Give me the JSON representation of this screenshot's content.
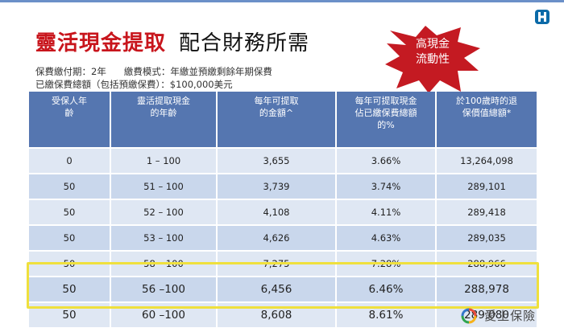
{
  "title": {
    "main": "靈活現金提取",
    "sub": "配合財務所需"
  },
  "burst": {
    "line1": "高現金",
    "line2": "流動性",
    "color": "#c41a22"
  },
  "info": {
    "term": "保費繳付期：2年",
    "mode": "繳費模式：年繳並預繳剩餘年期保費",
    "total": "已繳保費總額（包括預繳保費）：$100,000美元"
  },
  "table": {
    "headers": [
      "受保人年齡",
      "靈活提取現金的年齡",
      "每年可提取的金額^",
      "每年可提取現金佔已繳保費總額的%",
      "於100歲時的退保價值總額*"
    ],
    "rows": [
      [
        "0",
        "1 – 100",
        "3,655",
        "3.66%",
        "13,264,098"
      ],
      [
        "50",
        "51 – 100",
        "3,739",
        "3.74%",
        "289,101"
      ],
      [
        "50",
        "52 – 100",
        "4,108",
        "4.11%",
        "289,418"
      ],
      [
        "50",
        "53 – 100",
        "4,626",
        "4.63%",
        "289,035"
      ],
      [
        "50",
        "58 – 100",
        "7,275",
        "7.28%",
        "288,966"
      ],
      [
        "50",
        "56 –100",
        "6,456",
        "6.46%",
        "288,978"
      ],
      [
        "50",
        "60 –100",
        "8,608",
        "8.61%",
        "289,080"
      ]
    ],
    "header_color": "#5576b0",
    "highlight_color": "#efe03d"
  },
  "brand": {
    "name": "愛上保險",
    "logo_icon": "hospital-logo-icon",
    "brand_icon": "ring-logo-icon"
  }
}
